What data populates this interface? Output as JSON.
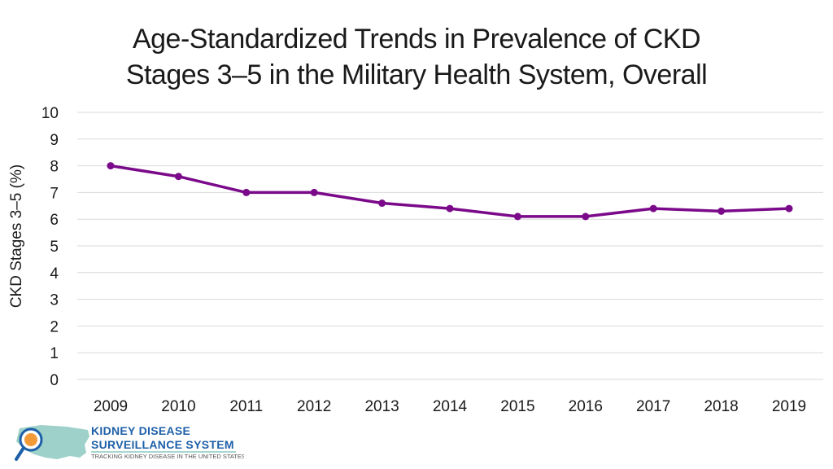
{
  "chart_data": {
    "type": "line",
    "title_line1": "Age-Standardized Trends in Prevalence of CKD",
    "title_line2": "Stages 3–5 in the Military Health System, Overall",
    "ylabel": "CKD Stages 3–5 (%)",
    "xlabel": "",
    "categories": [
      "2009",
      "2010",
      "2011",
      "2012",
      "2013",
      "2014",
      "2015",
      "2016",
      "2017",
      "2018",
      "2019"
    ],
    "series": [
      {
        "name": "Overall",
        "values": [
          8.0,
          7.6,
          7.0,
          7.0,
          6.6,
          6.4,
          6.1,
          6.1,
          6.4,
          6.3,
          6.4
        ]
      }
    ],
    "ylim": [
      0,
      10
    ],
    "yticks": [
      0,
      1,
      2,
      3,
      4,
      5,
      6,
      7,
      8,
      9,
      10
    ],
    "grid": true,
    "colors": {
      "line": "#7b0a8a",
      "grid": "#d9d9d9"
    }
  },
  "logo": {
    "line1": "KIDNEY DISEASE",
    "line2": "SURVEILLANCE SYSTEM",
    "line3": "TRACKING KIDNEY DISEASE IN THE UNITED STATES"
  }
}
